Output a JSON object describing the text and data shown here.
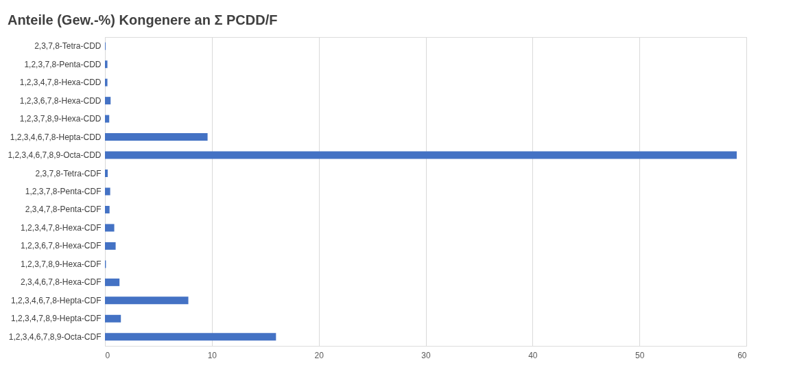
{
  "chart_data": {
    "type": "bar",
    "orientation": "horizontal",
    "title": "Anteile (Gew.-%) Kongenere an Σ PCDD/F",
    "categories": [
      "2,3,7,8-Tetra-CDD",
      "1,2,3,7,8-Penta-CDD",
      "1,2,3,4,7,8-Hexa-CDD",
      "1,2,3,6,7,8-Hexa-CDD",
      "1,2,3,7,8,9-Hexa-CDD",
      "1,2,3,4,6,7,8-Hepta-CDD",
      "1,2,3,4,6,7,8,9-Octa-CDD",
      "2,3,7,8-Tetra-CDF",
      "1,2,3,7,8-Penta-CDF",
      "2,3,4,7,8-Penta-CDF",
      "1,2,3,4,7,8-Hexa-CDF",
      "1,2,3,6,7,8-Hexa-CDF",
      "1,2,3,7,8,9-Hexa-CDF",
      "2,3,4,6,7,8-Hexa-CDF",
      "1,2,3,4,6,7,8-Hepta-CDF",
      "1,2,3,4,7,8,9-Hepta-CDF",
      "1,2,3,4,6,7,8,9-Octa-CDF"
    ],
    "values": [
      0.06,
      0.23,
      0.23,
      0.53,
      0.4,
      9.6,
      59.1,
      0.26,
      0.49,
      0.43,
      0.87,
      1.0,
      0.09,
      1.36,
      7.8,
      1.49,
      16.0
    ],
    "color": "#4472c4",
    "xlim": [
      0,
      60
    ],
    "xticks": [
      0,
      10,
      20,
      30,
      40,
      50,
      60
    ],
    "grid": "x"
  }
}
